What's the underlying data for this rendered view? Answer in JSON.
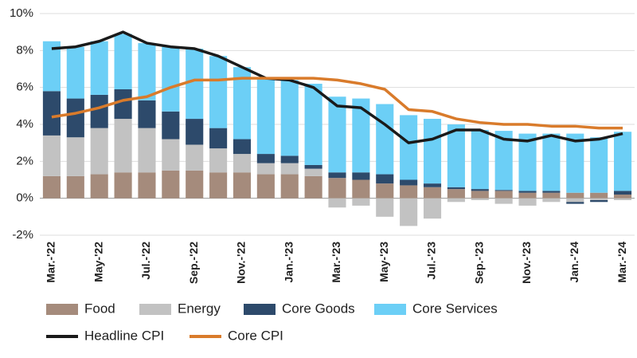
{
  "chart_data": {
    "type": "stacked-bar-line",
    "categories": [
      "Mar.-'22",
      null,
      "May-'22",
      null,
      "Jul.-'22",
      null,
      "Sep.-'22",
      null,
      "Nov.-'22",
      null,
      "Jan.-'23",
      null,
      "Mar.-'23",
      null,
      "May-'23",
      null,
      "Jul.-'23",
      null,
      "Sep.-'23",
      null,
      "Nov.-'23",
      null,
      "Jan.-'24",
      null,
      "Mar.-'24"
    ],
    "series": [
      {
        "name": "Food",
        "kind": "bar",
        "color": "#a58b7c",
        "values": [
          1.2,
          1.2,
          1.3,
          1.4,
          1.4,
          1.5,
          1.5,
          1.4,
          1.4,
          1.3,
          1.3,
          1.2,
          1.1,
          1.0,
          0.8,
          0.7,
          0.6,
          0.5,
          0.4,
          0.4,
          0.3,
          0.3,
          0.3,
          0.3,
          0.2
        ]
      },
      {
        "name": "Energy",
        "kind": "bar",
        "color": "#c2c2c2",
        "values": [
          2.2,
          2.1,
          2.5,
          2.9,
          2.4,
          1.7,
          1.4,
          1.3,
          1.0,
          0.6,
          0.6,
          0.4,
          -0.5,
          -0.4,
          -1.0,
          -1.5,
          -1.1,
          -0.2,
          -0.1,
          -0.3,
          -0.4,
          -0.2,
          -0.2,
          -0.1,
          -0.1
        ]
      },
      {
        "name": "Core Goods",
        "kind": "bar",
        "color": "#2d4a6b",
        "values": [
          2.4,
          2.1,
          1.8,
          1.6,
          1.5,
          1.5,
          1.4,
          1.1,
          0.8,
          0.5,
          0.4,
          0.2,
          0.3,
          0.4,
          0.5,
          0.3,
          0.2,
          0.1,
          0.1,
          0.05,
          0.1,
          0.1,
          -0.1,
          -0.1,
          0.2
        ]
      },
      {
        "name": "Core Services",
        "kind": "bar",
        "color": "#6ccff6",
        "values": [
          2.7,
          2.8,
          2.9,
          3.0,
          3.1,
          3.5,
          3.8,
          3.9,
          3.9,
          4.1,
          4.1,
          4.4,
          4.1,
          4.0,
          3.8,
          3.5,
          3.5,
          3.4,
          3.2,
          3.2,
          3.1,
          3.1,
          3.2,
          3.0,
          3.2
        ]
      },
      {
        "name": "Headline CPI",
        "kind": "line",
        "color": "#1a1a1a",
        "values": [
          8.1,
          8.2,
          8.5,
          9.0,
          8.4,
          8.2,
          8.1,
          7.7,
          7.1,
          6.5,
          6.4,
          6.0,
          5.0,
          4.9,
          4.0,
          3.0,
          3.2,
          3.7,
          3.7,
          3.2,
          3.1,
          3.4,
          3.1,
          3.2,
          3.5
        ]
      },
      {
        "name": "Core CPI",
        "kind": "line",
        "color": "#d97b2b",
        "values": [
          4.4,
          4.6,
          4.9,
          5.3,
          5.5,
          6.0,
          6.4,
          6.4,
          6.5,
          6.5,
          6.5,
          6.5,
          6.4,
          6.2,
          5.9,
          4.8,
          4.7,
          4.3,
          4.1,
          4.0,
          4.0,
          3.9,
          3.9,
          3.8,
          3.8
        ]
      }
    ],
    "ylim": [
      -2,
      10
    ],
    "yticks": [
      {
        "value": -2,
        "label": "-2%"
      },
      {
        "value": 0,
        "label": "0%"
      },
      {
        "value": 2,
        "label": "2%"
      },
      {
        "value": 4,
        "label": "4%"
      },
      {
        "value": 6,
        "label": "6%"
      },
      {
        "value": 8,
        "label": "8%"
      },
      {
        "value": 10,
        "label": "10%"
      }
    ],
    "grid": true
  }
}
